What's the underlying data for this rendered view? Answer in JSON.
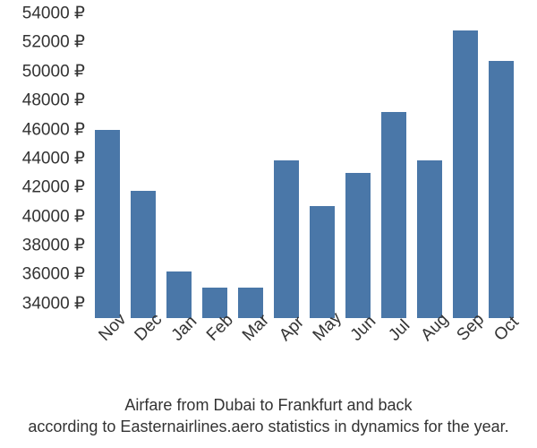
{
  "chart": {
    "type": "bar",
    "categories": [
      "Nov",
      "Dec",
      "Jan",
      "Feb",
      "Mar",
      "Apr",
      "May",
      "Jun",
      "Jul",
      "Aug",
      "Sep",
      "Oct"
    ],
    "values": [
      46000,
      41800,
      36200,
      35100,
      35100,
      43900,
      40700,
      43000,
      47200,
      43900,
      52800,
      50700
    ],
    "bar_color": "#4a77a8",
    "background_color": "#ffffff",
    "text_color": "#333333",
    "y_ticks": [
      34000,
      36000,
      38000,
      40000,
      42000,
      44000,
      46000,
      48000,
      50000,
      52000,
      54000
    ],
    "y_tick_labels": [
      "34000 ₽",
      "36000 ₽",
      "38000 ₽",
      "40000 ₽",
      "42000 ₽",
      "44000 ₽",
      "46000 ₽",
      "48000 ₽",
      "50000 ₽",
      "52000 ₽",
      "54000 ₽"
    ],
    "ylim": [
      33000,
      54000
    ],
    "label_fontsize": 19,
    "caption_fontsize": 18,
    "bar_width": 0.7
  },
  "caption_line1": "Airfare from Dubai to Frankfurt and back",
  "caption_line2": "according to Easternairlines.aero statistics in dynamics for the year."
}
